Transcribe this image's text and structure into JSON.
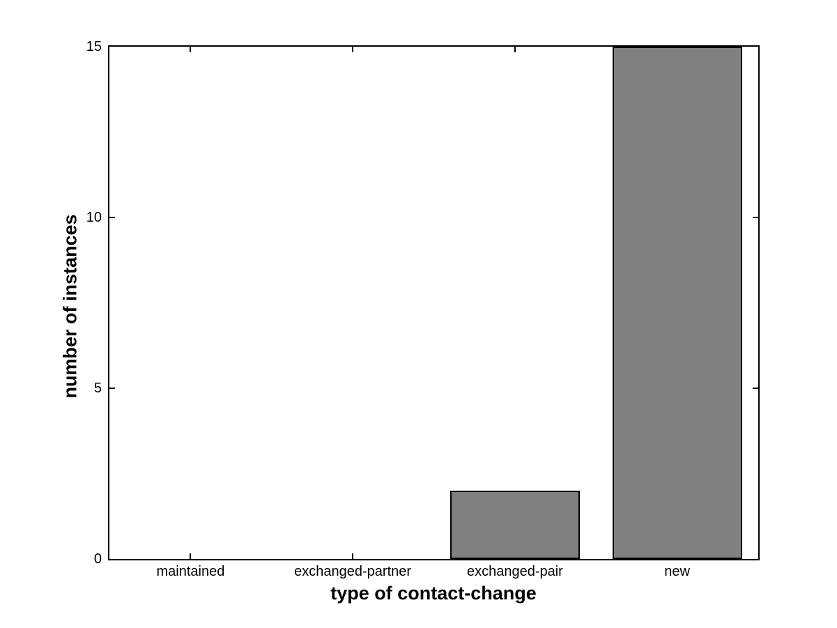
{
  "figure": {
    "background_color": "#ffffff",
    "axis_color": "#000000"
  },
  "chart_data": {
    "type": "bar",
    "title": "",
    "categories": [
      "maintained",
      "exchanged-partner",
      "exchanged-pair",
      "new"
    ],
    "values": [
      0,
      0,
      2,
      15
    ],
    "xlabel": "type of contact-change",
    "ylabel": "number of instances",
    "ylim": [
      0,
      15
    ],
    "yticks": [
      0,
      5,
      10,
      15
    ],
    "bar_color": "#808080",
    "bar_edge_color": "#000000",
    "bar_width_fraction": 0.8,
    "grid": false,
    "legend": null,
    "box": true,
    "tick_direction": "in"
  }
}
